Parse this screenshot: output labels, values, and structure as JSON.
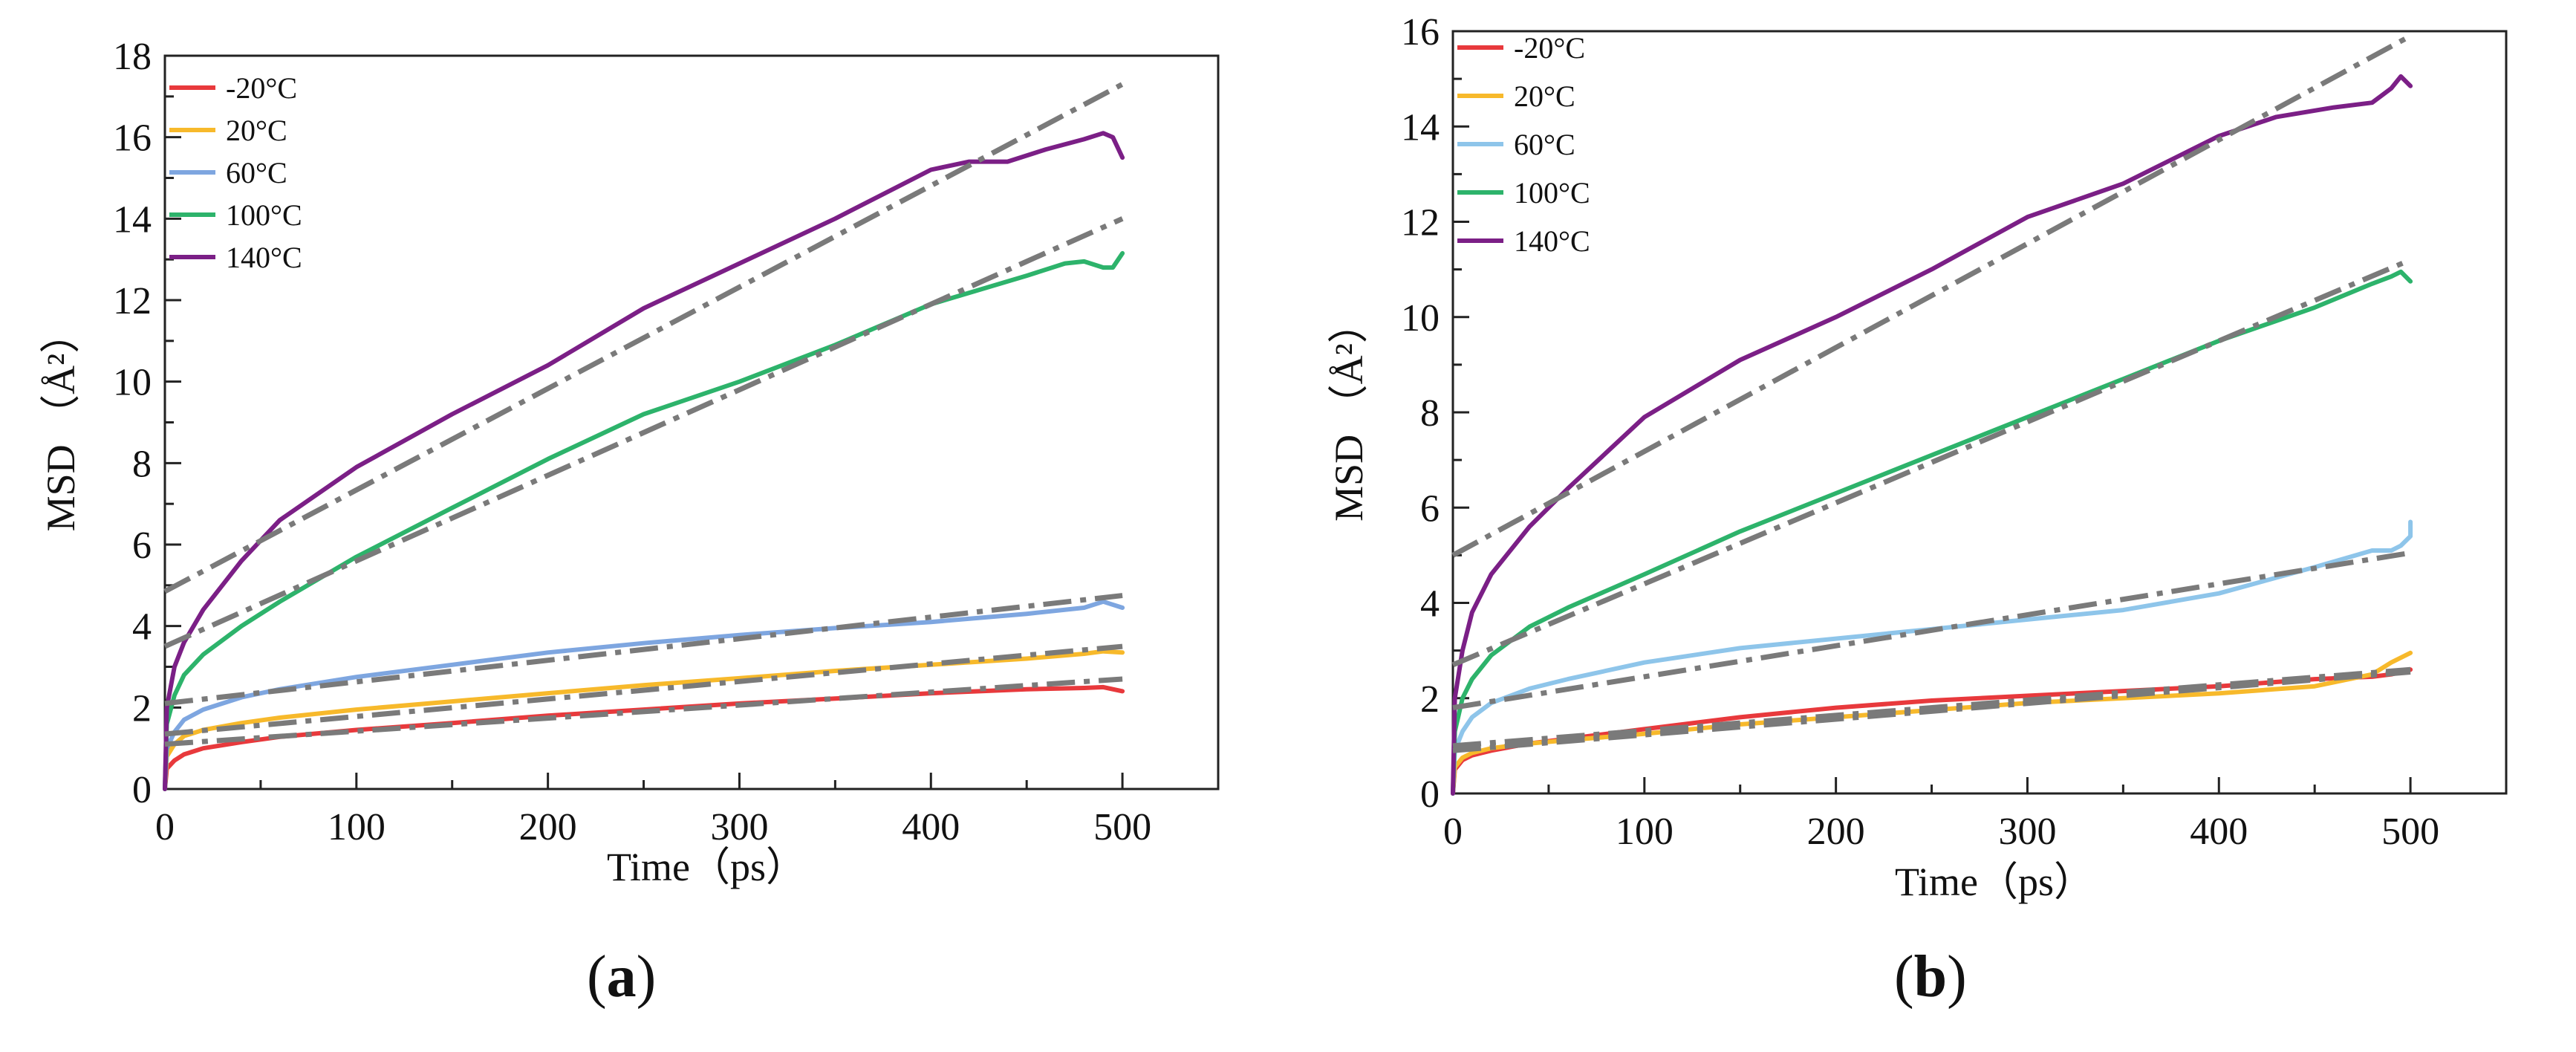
{
  "chart_data": [
    {
      "type": "line",
      "panel_label": "a",
      "xlabel": "Time（ps）",
      "ylabel": "MSD （Å²）",
      "xlim": [
        0,
        550
      ],
      "ylim": [
        0,
        18
      ],
      "xticks": [
        0,
        100,
        200,
        300,
        400,
        500
      ],
      "yticks": [
        0,
        2,
        4,
        6,
        8,
        10,
        12,
        14,
        16,
        18
      ],
      "legend_position": "top-left",
      "series": [
        {
          "name": "-20°C",
          "color": "#e8393c",
          "x": [
            0,
            1,
            5,
            10,
            20,
            40,
            60,
            100,
            150,
            200,
            250,
            300,
            350,
            400,
            450,
            480,
            490,
            500
          ],
          "y": [
            0,
            0.5,
            0.7,
            0.85,
            1.0,
            1.15,
            1.28,
            1.45,
            1.62,
            1.8,
            1.95,
            2.1,
            2.22,
            2.35,
            2.45,
            2.48,
            2.5,
            2.4
          ],
          "fit": {
            "x": [
              0,
              500
            ],
            "y": [
              1.1,
              2.7
            ]
          }
        },
        {
          "name": "20°C",
          "color": "#f7b92b",
          "x": [
            0,
            1,
            5,
            10,
            20,
            40,
            60,
            100,
            150,
            200,
            250,
            300,
            350,
            400,
            450,
            480,
            490,
            500
          ],
          "y": [
            0,
            0.8,
            1.1,
            1.3,
            1.45,
            1.62,
            1.75,
            1.95,
            2.15,
            2.35,
            2.55,
            2.72,
            2.9,
            3.05,
            3.2,
            3.32,
            3.38,
            3.35
          ],
          "fit": {
            "x": [
              0,
              500
            ],
            "y": [
              1.35,
              3.5
            ]
          }
        },
        {
          "name": "60°C",
          "color": "#7ea6e0",
          "x": [
            0,
            1,
            5,
            10,
            20,
            40,
            60,
            100,
            150,
            200,
            250,
            300,
            350,
            400,
            450,
            480,
            490,
            500
          ],
          "y": [
            0,
            1.0,
            1.4,
            1.7,
            1.95,
            2.25,
            2.45,
            2.75,
            3.05,
            3.35,
            3.58,
            3.78,
            3.95,
            4.1,
            4.3,
            4.45,
            4.6,
            4.45
          ],
          "fit": {
            "x": [
              0,
              500
            ],
            "y": [
              2.1,
              4.75
            ]
          }
        },
        {
          "name": "100°C",
          "color": "#2db36b",
          "x": [
            0,
            1,
            5,
            10,
            20,
            40,
            60,
            100,
            150,
            200,
            250,
            300,
            350,
            400,
            450,
            470,
            480,
            490,
            495,
            500
          ],
          "y": [
            0,
            1.6,
            2.3,
            2.8,
            3.3,
            4.0,
            4.6,
            5.7,
            6.9,
            8.1,
            9.2,
            10.0,
            10.9,
            11.9,
            12.6,
            12.9,
            12.95,
            12.8,
            12.8,
            13.15
          ],
          "fit": {
            "x": [
              0,
              500
            ],
            "y": [
              3.5,
              14.0
            ]
          }
        },
        {
          "name": "140°C",
          "color": "#7b1f86",
          "x": [
            0,
            1,
            5,
            10,
            20,
            40,
            60,
            100,
            150,
            200,
            250,
            300,
            350,
            400,
            420,
            440,
            460,
            480,
            490,
            495,
            500
          ],
          "y": [
            0,
            2.0,
            3.0,
            3.6,
            4.4,
            5.6,
            6.6,
            7.9,
            9.2,
            10.4,
            11.8,
            12.9,
            14.0,
            15.2,
            15.4,
            15.4,
            15.7,
            15.95,
            16.1,
            16.0,
            15.5
          ],
          "fit": {
            "x": [
              0,
              500
            ],
            "y": [
              4.85,
              17.3
            ]
          }
        }
      ]
    },
    {
      "type": "line",
      "panel_label": "b",
      "xlabel": "Time（ps）",
      "ylabel": "MSD （Å²）",
      "xlim": [
        0,
        550
      ],
      "ylim": [
        0,
        16
      ],
      "xticks": [
        0,
        100,
        200,
        300,
        400,
        500
      ],
      "yticks": [
        0,
        2,
        4,
        6,
        8,
        10,
        12,
        14,
        16
      ],
      "legend_position": "top-left",
      "series": [
        {
          "name": "-20°C",
          "color": "#e8393c",
          "x": [
            0,
            1,
            5,
            10,
            20,
            40,
            60,
            100,
            150,
            200,
            250,
            300,
            350,
            400,
            450,
            480,
            490,
            500
          ],
          "y": [
            0,
            0.5,
            0.7,
            0.8,
            0.9,
            1.05,
            1.15,
            1.35,
            1.6,
            1.8,
            1.95,
            2.05,
            2.15,
            2.25,
            2.4,
            2.45,
            2.5,
            2.6
          ],
          "fit": {
            "x": [
              0,
              500
            ],
            "y": [
              1.0,
              2.6
            ]
          }
        },
        {
          "name": "20°C",
          "color": "#f7b92b",
          "x": [
            0,
            1,
            5,
            10,
            20,
            40,
            60,
            100,
            150,
            200,
            250,
            300,
            350,
            400,
            450,
            480,
            490,
            500
          ],
          "y": [
            0,
            0.55,
            0.75,
            0.85,
            0.95,
            1.05,
            1.12,
            1.25,
            1.45,
            1.6,
            1.75,
            1.9,
            2.0,
            2.1,
            2.25,
            2.5,
            2.75,
            2.95
          ],
          "fit": {
            "x": [
              0,
              500
            ],
            "y": [
              0.9,
              2.55
            ]
          }
        },
        {
          "name": "60°C",
          "color": "#8ec5ea",
          "x": [
            0,
            1,
            5,
            10,
            20,
            40,
            60,
            100,
            150,
            200,
            250,
            300,
            350,
            400,
            450,
            480,
            490,
            495,
            500,
            500
          ],
          "y": [
            0,
            0.9,
            1.3,
            1.6,
            1.9,
            2.2,
            2.4,
            2.75,
            3.05,
            3.25,
            3.45,
            3.65,
            3.85,
            4.2,
            4.75,
            5.1,
            5.1,
            5.2,
            5.4,
            5.7
          ],
          "fit": {
            "x": [
              0,
              500
            ],
            "y": [
              1.8,
              5.05
            ]
          }
        },
        {
          "name": "100°C",
          "color": "#2db36b",
          "x": [
            0,
            1,
            5,
            10,
            20,
            40,
            60,
            100,
            150,
            200,
            250,
            300,
            350,
            400,
            450,
            480,
            490,
            495,
            500
          ],
          "y": [
            0,
            1.3,
            2.0,
            2.4,
            2.9,
            3.5,
            3.9,
            4.6,
            5.5,
            6.3,
            7.1,
            7.9,
            8.7,
            9.5,
            10.2,
            10.7,
            10.85,
            10.95,
            10.75
          ],
          "fit": {
            "x": [
              0,
              500
            ],
            "y": [
              2.7,
              11.2
            ]
          }
        },
        {
          "name": "140°C",
          "color": "#7b1f86",
          "x": [
            0,
            1,
            5,
            10,
            20,
            40,
            60,
            100,
            150,
            200,
            250,
            300,
            350,
            400,
            430,
            460,
            480,
            490,
            495,
            500
          ],
          "y": [
            0,
            2.0,
            3.0,
            3.8,
            4.6,
            5.6,
            6.4,
            7.9,
            9.1,
            10.0,
            11.0,
            12.1,
            12.8,
            13.8,
            14.2,
            14.4,
            14.5,
            14.8,
            15.05,
            14.85
          ],
          "fit": {
            "x": [
              0,
              500
            ],
            "y": [
              5.0,
              15.9
            ]
          }
        }
      ]
    }
  ]
}
